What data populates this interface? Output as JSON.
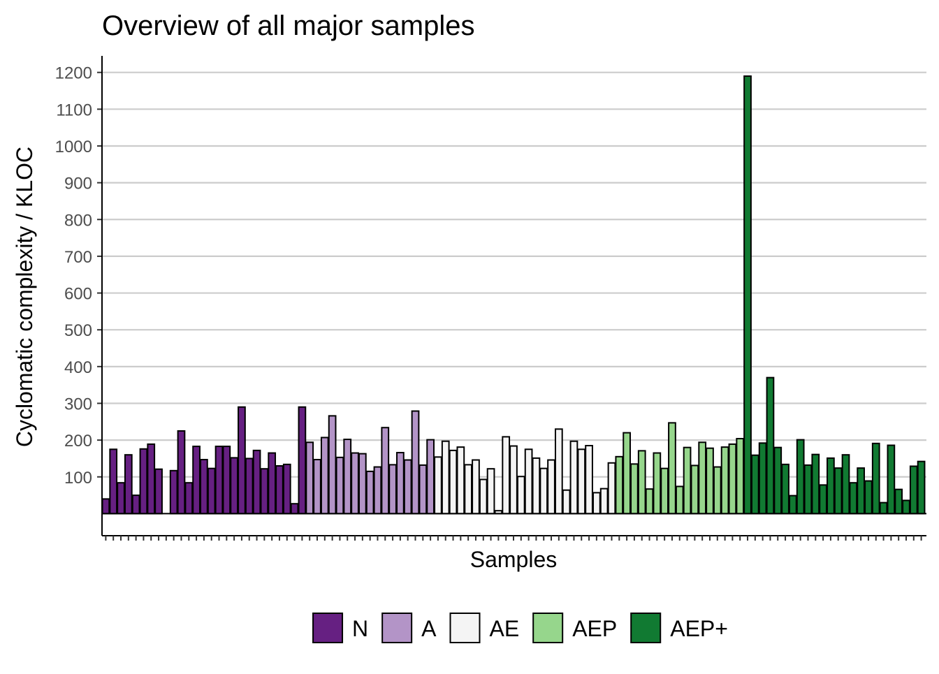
{
  "chart_data": {
    "type": "bar",
    "title": "Overview of all major samples",
    "xlabel": "Samples",
    "ylabel": "Cyclomatic complexity / KLOC",
    "ylim": [
      -60,
      1245
    ],
    "yticks": [
      100,
      200,
      300,
      400,
      500,
      600,
      700,
      800,
      900,
      1000,
      1100,
      1200
    ],
    "grid": "horizontal",
    "legend_position": "bottom",
    "groups": [
      {
        "name": "N",
        "color": "#662082"
      },
      {
        "name": "A",
        "color": "#b394c7"
      },
      {
        "name": "AE",
        "color": "#f4f4f4"
      },
      {
        "name": "AEP",
        "color": "#96d68c"
      },
      {
        "name": "AEP+",
        "color": "#117a32"
      }
    ],
    "series": [
      {
        "name": "N",
        "values": [
          40,
          175,
          84,
          160,
          50,
          176,
          189,
          121,
          0,
          117,
          225,
          84,
          183,
          147,
          123,
          183,
          183,
          152,
          290,
          150,
          172,
          122,
          165,
          130,
          134,
          27,
          290
        ]
      },
      {
        "name": "A",
        "values": [
          194,
          147,
          207,
          266,
          153,
          202,
          165,
          163,
          115,
          127,
          234,
          133,
          166,
          146,
          279,
          132,
          201
        ]
      },
      {
        "name": "AE",
        "values": [
          154,
          197,
          172,
          181,
          133,
          146,
          93,
          122,
          8,
          209,
          184,
          101,
          175,
          151,
          123,
          146,
          230,
          64,
          197,
          175,
          185,
          57,
          68,
          138
        ]
      },
      {
        "name": "AEP",
        "values": [
          155,
          220,
          135,
          171,
          67,
          165,
          123,
          247,
          74,
          180,
          131,
          194,
          178,
          127,
          181,
          189,
          204
        ]
      },
      {
        "name": "AEP+",
        "values": [
          1190,
          159,
          192,
          370,
          180,
          134,
          49,
          201,
          132,
          161,
          78,
          151,
          124,
          160,
          84,
          124,
          89,
          191,
          30,
          186,
          66,
          36,
          129,
          142
        ]
      }
    ]
  }
}
